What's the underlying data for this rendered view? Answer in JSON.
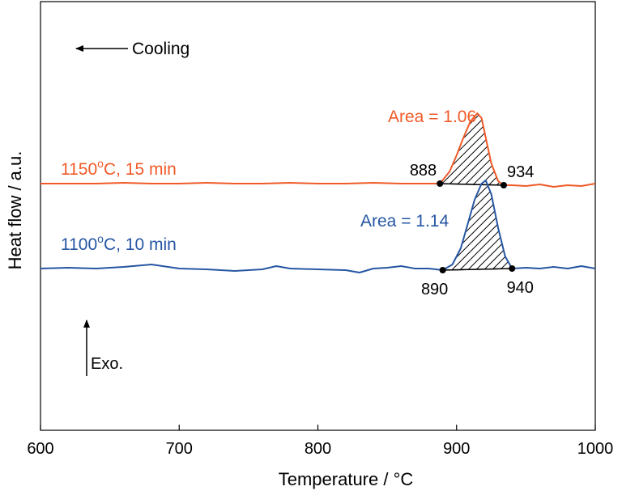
{
  "chart_data": {
    "type": "line",
    "xlabel": "Temperature / °C",
    "ylabel": "Heat flow / a.u.",
    "xlim": [
      600,
      1000
    ],
    "xticks": [
      600,
      700,
      800,
      900,
      1000
    ],
    "grid": false,
    "legend": "none",
    "series": [
      {
        "name": "1150°C, 15 min",
        "color": "#f05a28",
        "baseline": 3.05,
        "x": [
          600,
          620,
          640,
          660,
          680,
          700,
          720,
          740,
          760,
          780,
          800,
          820,
          840,
          860,
          880,
          888,
          895,
          900,
          905,
          910,
          915,
          918,
          921,
          925,
          930,
          934,
          940,
          950,
          960,
          970,
          980,
          990,
          1000
        ],
        "y": [
          3.05,
          3.05,
          3.05,
          3.06,
          3.05,
          3.05,
          3.06,
          3.05,
          3.05,
          3.06,
          3.05,
          3.05,
          3.06,
          3.05,
          3.05,
          3.05,
          3.2,
          3.4,
          3.62,
          3.82,
          3.92,
          3.86,
          3.62,
          3.3,
          3.08,
          3.03,
          3.03,
          3.02,
          3.04,
          3.01,
          3.03,
          3.02,
          3.05
        ],
        "onset": 888,
        "end": 934,
        "peak_area": 1.06,
        "area_label": "Area = 1.06",
        "label": "1150°C, 15 min",
        "onset_label": "888",
        "end_label": "934"
      },
      {
        "name": "1100°C, 10 min",
        "color": "#2656a3",
        "baseline": 2.0,
        "x": [
          600,
          620,
          640,
          660,
          680,
          700,
          720,
          740,
          760,
          770,
          780,
          800,
          820,
          830,
          840,
          850,
          860,
          870,
          880,
          890,
          897,
          903,
          908,
          913,
          918,
          921,
          925,
          930,
          935,
          940,
          950,
          960,
          970,
          980,
          990,
          1000
        ],
        "y": [
          2.0,
          2.01,
          2.0,
          2.02,
          2.05,
          2.0,
          1.99,
          1.97,
          1.99,
          2.03,
          2.0,
          1.99,
          1.98,
          1.95,
          2.0,
          2.01,
          2.03,
          2.0,
          2.0,
          1.98,
          2.05,
          2.25,
          2.55,
          2.85,
          3.05,
          3.09,
          2.92,
          2.5,
          2.15,
          2.0,
          2.01,
          2.0,
          2.02,
          2.0,
          2.03,
          2.0
        ],
        "onset": 890,
        "end": 940,
        "peak_area": 1.14,
        "area_label": "Area = 1.14",
        "label": "1100°C, 10 min",
        "onset_label": "890",
        "end_label": "940"
      }
    ],
    "annotations": {
      "cooling": "Cooling",
      "exo": "Exo."
    }
  }
}
